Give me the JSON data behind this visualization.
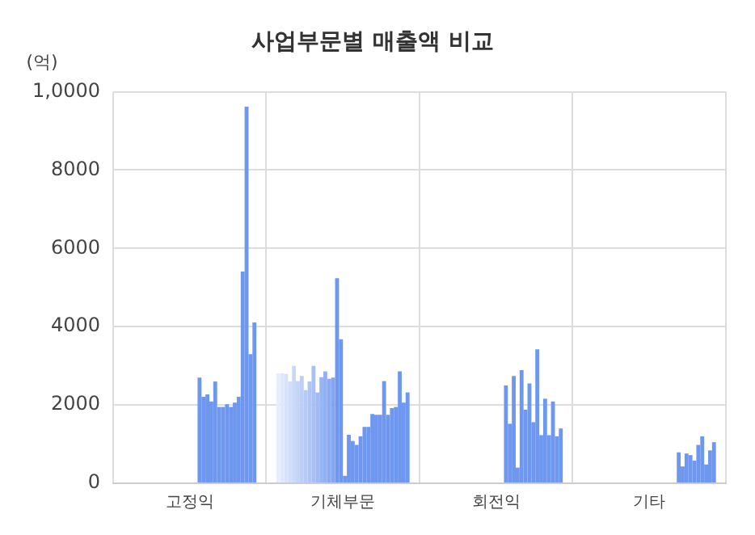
{
  "chart_data": {
    "type": "bar",
    "title": "사업부문별 매출액 비교",
    "ylabel": "(억)",
    "categories": [
      "고정익",
      "기체부문",
      "회전익",
      "기타"
    ],
    "series": [
      {
        "color": "#e6edfd",
        "values": [
          null,
          2810,
          null,
          null
        ]
      },
      {
        "color": "#dfe8fc",
        "values": [
          null,
          2810,
          null,
          null
        ]
      },
      {
        "color": "#d8e3fb",
        "values": [
          null,
          2790,
          null,
          null
        ]
      },
      {
        "color": "#d1defa",
        "values": [
          null,
          2600,
          null,
          null
        ]
      },
      {
        "color": "#cad9f9",
        "values": [
          null,
          3000,
          null,
          null
        ]
      },
      {
        "color": "#c3d4f8",
        "values": [
          null,
          2610,
          null,
          null
        ]
      },
      {
        "color": "#bccff8",
        "values": [
          null,
          2740,
          null,
          null
        ]
      },
      {
        "color": "#b5caf7",
        "values": [
          null,
          2380,
          null,
          null
        ]
      },
      {
        "color": "#aec5f6",
        "values": [
          null,
          2600,
          null,
          null
        ]
      },
      {
        "color": "#a7c0f5",
        "values": [
          null,
          3000,
          null,
          null
        ]
      },
      {
        "color": "#a0bbf4",
        "values": [
          null,
          2320,
          null,
          null
        ]
      },
      {
        "color": "#99b6f4",
        "values": [
          null,
          2710,
          null,
          null
        ]
      },
      {
        "color": "#92b1f3",
        "values": [
          null,
          2860,
          null,
          null
        ]
      },
      {
        "color": "#8baaf3",
        "values": [
          null,
          2670,
          null,
          null
        ]
      },
      {
        "color": "#84a5f2",
        "values": [
          null,
          2700,
          null,
          null
        ]
      },
      {
        "color": "#6e97f0",
        "values": [
          null,
          5240,
          null,
          null
        ]
      },
      {
        "color": "#6e97f0",
        "values": [
          null,
          3680,
          null,
          null
        ]
      },
      {
        "color": "#6e97f0",
        "values": [
          null,
          190,
          null,
          null
        ]
      },
      {
        "color": "#6e97f0",
        "values": [
          null,
          1240,
          null,
          null
        ]
      },
      {
        "color": "#6e97f0",
        "values": [
          2700,
          1080,
          2500,
          null
        ]
      },
      {
        "color": "#6e97f0",
        "values": [
          2210,
          980,
          1520,
          null
        ]
      },
      {
        "color": "#6e97f0",
        "values": [
          2270,
          1200,
          2740,
          null
        ]
      },
      {
        "color": "#6e97f0",
        "values": [
          2090,
          1440,
          400,
          null
        ]
      },
      {
        "color": "#6e97f0",
        "values": [
          2600,
          1440,
          2890,
          null
        ]
      },
      {
        "color": "#6e97f0",
        "values": [
          1950,
          1770,
          1880,
          790
        ]
      },
      {
        "color": "#6e97f0",
        "values": [
          1950,
          1750,
          2550,
          430
        ]
      },
      {
        "color": "#6e97f0",
        "values": [
          2020,
          1750,
          1560,
          760
        ]
      },
      {
        "color": "#6e97f0",
        "values": [
          1950,
          2610,
          3420,
          720
        ]
      },
      {
        "color": "#6e97f0",
        "values": [
          2060,
          1750,
          1230,
          580
        ]
      },
      {
        "color": "#6e97f0",
        "values": [
          2210,
          1920,
          2160,
          980
        ]
      },
      {
        "color": "#6e97f0",
        "values": [
          5410,
          1950,
          1230,
          1200
        ]
      },
      {
        "color": "#6e97f0",
        "values": [
          9620,
          2860,
          2090,
          480
        ]
      },
      {
        "color": "#6e97f0",
        "values": [
          3300,
          2060,
          1200,
          840
        ]
      },
      {
        "color": "#6e97f0",
        "values": [
          4110,
          2320,
          1400,
          1050
        ]
      }
    ],
    "ylim": [
      0,
      10000
    ],
    "yticks": [
      0,
      2000,
      4000,
      6000,
      8000,
      {
        "value": 10000,
        "label": "1,0000"
      }
    ],
    "grid": true,
    "legend": false
  }
}
